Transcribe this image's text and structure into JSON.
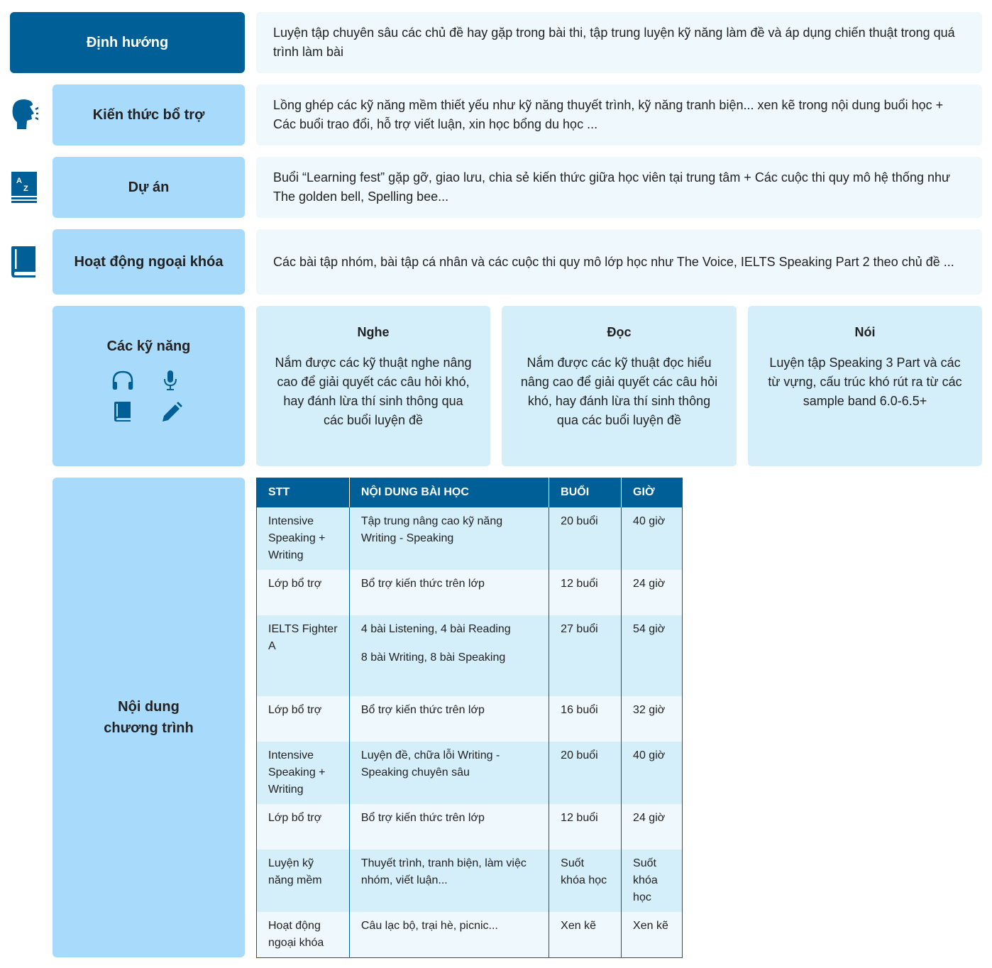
{
  "rows": [
    {
      "label": "Định hướng",
      "text": "Luyện tập chuyên sâu các chủ đề hay gặp trong bài thi, tập trung luyện kỹ năng làm đề và áp dụng chiến thuật trong quá trình làm bài"
    },
    {
      "label": "Kiến thức bổ trợ",
      "icon": "speaking-head-icon",
      "text": "Lồng ghép các kỹ năng mềm thiết yếu như kỹ năng thuyết trình, kỹ năng tranh biện... xen kẽ trong nội dung buổi học + Các buổi trao đổi, hỗ trợ viết luận, xin học bổng du học ..."
    },
    {
      "label": "Dự án",
      "icon": "dictionary-az-icon",
      "text": "Buổi “Learning fest” gặp gỡ, giao lưu, chia sẻ kiến thức giữa học viên tại trung tâm + Các cuộc thi quy mô hệ thống như The golden bell, Spelling bee..."
    },
    {
      "label": "Hoạt động ngoại khóa",
      "icon": "book-icon",
      "text": "Các bài tập nhóm, bài tập cá nhân và các cuộc thi quy mô lớp học như The Voice, IELTS Speaking Part 2 theo chủ đề ..."
    }
  ],
  "skills": {
    "label": "Các kỹ năng",
    "icons": [
      "headphones-icon",
      "microphone-icon",
      "book-icon",
      "pencil-icon"
    ],
    "cards": [
      {
        "title": "Nghe",
        "text": "Nắm được các kỹ thuật nghe nâng cao để giải quyết các câu hỏi khó, hay đánh lừa thí sinh thông qua các buổi luyện đề"
      },
      {
        "title": "Đọc",
        "text": "Nắm được các kỹ thuật đọc hiểu nâng cao để giải quyết các câu hỏi khó, hay đánh lừa thí sinh thông qua các buổi luyện đề"
      },
      {
        "title": "Nói",
        "text": "Luyện tập Speaking 3 Part và các từ vựng, cấu trúc khó rút ra từ các sample band 6.0-6.5+"
      }
    ]
  },
  "program": {
    "label": "Nội dung chương trình",
    "headers": [
      "STT",
      "NỘI DUNG BÀI HỌC",
      "BUỔI",
      "GIỜ"
    ],
    "rows": [
      [
        "Intensive Speaking + Writing",
        "Tập trung nâng cao kỹ năng Writing - Speaking",
        "20 buổi",
        "40 giờ"
      ],
      [
        "Lớp bổ trợ",
        "Bổ trợ kiến thức trên lớp",
        "12 buổi",
        "24 giờ"
      ],
      [
        "IELTS Fighter A",
        "4 bài Listening, 4 bài Reading",
        "27 buổi",
        "54 giờ"
      ],
      [
        "Lớp bổ trợ",
        "Bổ trợ kiến thức trên lớp",
        "16 buổi",
        "32 giờ"
      ],
      [
        "Intensive Speaking + Writing",
        "Luyện đề, chữa lỗi Writing - Speaking chuyên sâu",
        "20 buổi",
        "40 giờ"
      ],
      [
        "Lớp bổ trợ",
        "Bổ trợ kiến thức trên lớp",
        "12 buổi",
        "24 giờ"
      ],
      [
        "Luyện kỹ năng mềm",
        " Thuyết trình, tranh biện, làm việc nhóm, viết luận...",
        "Suốt khóa học",
        "Suốt khóa học"
      ],
      [
        "Hoạt động ngoại khóa",
        "Câu lạc bộ, trại hè, picnic...",
        "Xen kẽ",
        "Xen kẽ"
      ]
    ],
    "row3_extra": "8 bài Writing, 8 bài Speaking"
  },
  "colors": {
    "primary": "#005f96",
    "label_bg": "#a8dafc",
    "text_bg": "#eef8fd",
    "card_bg": "#d4eefa"
  }
}
